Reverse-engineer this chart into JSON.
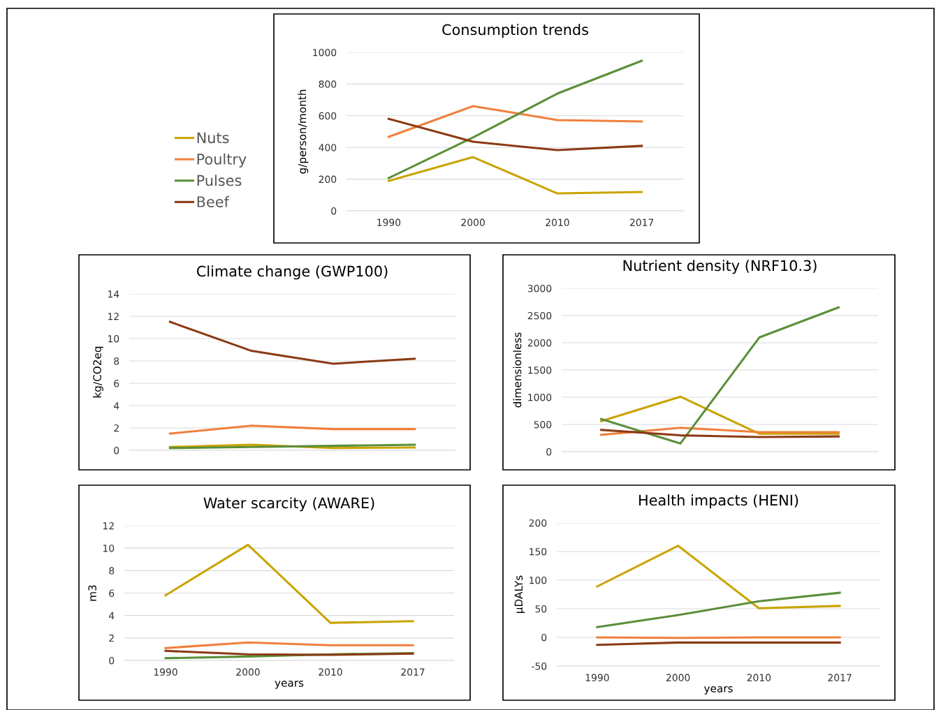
{
  "chart_data": [
    {
      "type": "line",
      "title": "Consumption trends",
      "ylabel": "g/person/month",
      "categories": [
        "1990",
        "2000",
        "2010",
        "2017"
      ],
      "ylim": [
        0,
        1000
      ],
      "yticks": [
        0,
        200,
        400,
        600,
        800,
        1000
      ],
      "grid": "y",
      "legend": "left",
      "series": [
        {
          "name": "Nuts",
          "color": "#c9a400",
          "values": [
            189,
            339,
            110,
            119
          ]
        },
        {
          "name": "Poultry",
          "color": "#f0803c",
          "values": [
            467,
            661,
            573,
            564
          ]
        },
        {
          "name": "Pulses",
          "color": "#5b8f3a",
          "values": [
            207,
            463,
            740,
            947
          ]
        },
        {
          "name": "Beef",
          "color": "#8b3a14",
          "values": [
            581,
            436,
            383,
            410
          ]
        }
      ]
    },
    {
      "type": "line",
      "title": "Climate change (GWP100)",
      "ylabel": "kg/CO2eq",
      "categories": [
        "1990",
        "2000",
        "2010",
        "2017"
      ],
      "ylim": [
        0,
        14
      ],
      "yticks": [
        0,
        2,
        4,
        6,
        8,
        10,
        12,
        14
      ],
      "grid": "y",
      "tick_labels": "y",
      "series": [
        {
          "color": "#c9a400",
          "values": [
            0.3,
            0.5,
            0.2,
            0.25
          ]
        },
        {
          "color": "#f0803c",
          "values": [
            1.5,
            2.2,
            1.9,
            1.9
          ]
        },
        {
          "color": "#5b8f3a",
          "values": [
            0.2,
            0.3,
            0.4,
            0.5
          ]
        },
        {
          "color": "#8b3a14",
          "values": [
            11.5,
            8.9,
            7.75,
            8.2
          ]
        }
      ]
    },
    {
      "type": "line",
      "title": "Nutrient density (NRF10.3)",
      "ylabel": "dimensionless",
      "categories": [
        "1990",
        "2000",
        "2010",
        "2017"
      ],
      "ylim": [
        0,
        3000
      ],
      "yticks": [
        0,
        500,
        1000,
        1500,
        2000,
        2500,
        3000
      ],
      "grid": "y",
      "tick_labels": "y",
      "series": [
        {
          "color": "#c9a400",
          "values": [
            560,
            1010,
            330,
            330
          ]
        },
        {
          "color": "#f0803c",
          "values": [
            310,
            440,
            360,
            360
          ]
        },
        {
          "color": "#5b8f3a",
          "values": [
            600,
            150,
            2100,
            2650
          ]
        },
        {
          "color": "#8b3a14",
          "values": [
            400,
            300,
            270,
            280
          ]
        }
      ]
    },
    {
      "type": "line",
      "title": "Water scarcity (AWARE)",
      "ylabel": "m3",
      "xlabel": "years",
      "categories": [
        "1990",
        "2000",
        "2010",
        "2017"
      ],
      "ylim": [
        0,
        12
      ],
      "yticks": [
        0,
        2,
        4,
        6,
        8,
        10,
        12
      ],
      "grid": "y",
      "series": [
        {
          "color": "#c9a400",
          "values": [
            5.8,
            10.3,
            3.35,
            3.5
          ]
        },
        {
          "color": "#f0803c",
          "values": [
            1.1,
            1.6,
            1.35,
            1.35
          ]
        },
        {
          "color": "#5b8f3a",
          "values": [
            0.2,
            0.35,
            0.55,
            0.65
          ]
        },
        {
          "color": "#8b3a14",
          "values": [
            0.85,
            0.55,
            0.5,
            0.6
          ]
        }
      ]
    },
    {
      "type": "line",
      "title": "Health impacts (HENI)",
      "ylabel": "µDALYs",
      "xlabel": "years",
      "categories": [
        "1990",
        "2000",
        "2010",
        "2017"
      ],
      "ylim": [
        -50,
        200
      ],
      "yticks": [
        -50,
        0,
        50,
        100,
        150,
        200
      ],
      "grid": "y",
      "series": [
        {
          "color": "#c9a400",
          "values": [
            89,
            160,
            51,
            55
          ]
        },
        {
          "color": "#f0803c",
          "values": [
            0,
            -1,
            0,
            0
          ]
        },
        {
          "color": "#5b8f3a",
          "values": [
            18,
            39,
            63,
            78
          ]
        },
        {
          "color": "#8b3a14",
          "values": [
            -13,
            -9,
            -9,
            -9
          ]
        }
      ]
    }
  ]
}
